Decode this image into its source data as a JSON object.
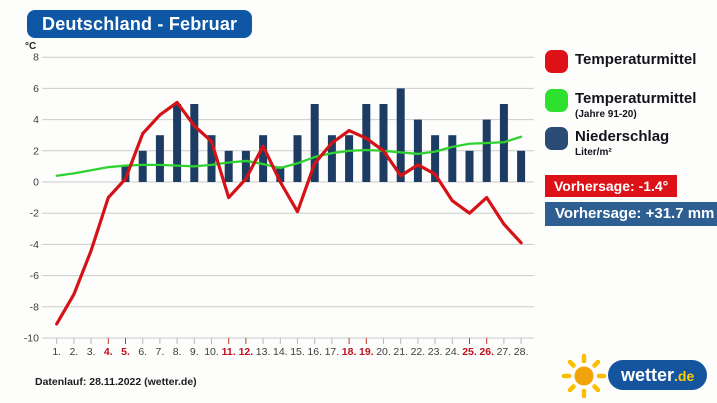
{
  "title": "Deutschland - Februar",
  "unit_label": "°C",
  "chart_data": {
    "type": "mixed",
    "title": "Deutschland - Februar",
    "ylabel": "°C",
    "ylim": [
      -10,
      8
    ],
    "yticks": [
      8,
      6,
      4,
      2,
      0,
      -2,
      -4,
      -6,
      -8,
      -10
    ],
    "categories": [
      "1.",
      "2.",
      "3.",
      "4.",
      "5.",
      "6.",
      "7.",
      "8.",
      "9.",
      "10.",
      "11.",
      "12.",
      "13.",
      "14.",
      "15.",
      "16.",
      "17.",
      "18.",
      "19.",
      "20.",
      "21.",
      "22.",
      "23.",
      "24.",
      "25.",
      "26.",
      "27.",
      "28."
    ],
    "weekend_days": [
      4,
      5,
      11,
      12,
      18,
      19,
      25,
      26
    ],
    "grid": true,
    "legend_position": "right",
    "series": [
      {
        "name": "Temperaturmittel",
        "type": "line",
        "color": "#d41217",
        "values": [
          -9.1,
          -7.2,
          -4.4,
          -1.0,
          0.2,
          3.1,
          4.3,
          5.1,
          3.6,
          2.6,
          -1.0,
          0.2,
          2.3,
          0.0,
          -1.9,
          1.2,
          2.5,
          3.3,
          2.8,
          2.0,
          0.4,
          1.1,
          0.5,
          -1.2,
          -2.0,
          -1.0,
          -2.7,
          -3.9
        ]
      },
      {
        "name": "Temperaturmittel (Jahre 91-20)",
        "type": "line",
        "color": "#2fd32f",
        "values": [
          0.4,
          0.55,
          0.75,
          0.95,
          1.05,
          1.1,
          1.1,
          1.05,
          1.0,
          1.1,
          1.25,
          1.35,
          1.15,
          0.9,
          1.2,
          1.6,
          1.85,
          2.0,
          2.05,
          2.0,
          1.9,
          1.8,
          1.95,
          2.25,
          2.45,
          2.5,
          2.55,
          2.9
        ]
      },
      {
        "name": "Niederschlag (Liter/m²)",
        "type": "bar",
        "color": "#1c3c63",
        "values": [
          null,
          null,
          null,
          null,
          1,
          2,
          3,
          5,
          5,
          3,
          2,
          2,
          3,
          1,
          3,
          5,
          3,
          3,
          5,
          5,
          6,
          4,
          3,
          3,
          2,
          4,
          5,
          2
        ]
      }
    ],
    "axis_colors": {
      "grid": "#cccccc",
      "tick_label": "#3d3d3d",
      "weekend_label": "#c01020"
    }
  },
  "legend": {
    "items": [
      {
        "label": "Temperaturmittel",
        "sublabel": "",
        "color": "#dd1116"
      },
      {
        "label": "Temperaturmittel",
        "sublabel": "(Jahre 91-20)",
        "color": "#2ee12e"
      },
      {
        "label": "Niederschlag",
        "sublabel": "Liter/m²",
        "color": "#2a4b74"
      }
    ]
  },
  "forecast": {
    "temperature": "Vorhersage: -1.4°",
    "precipitation": "Vorhersage: +31.7 mm",
    "temperature_bg": "#dc1218",
    "precipitation_bg": "#2d5f92"
  },
  "footer": {
    "datenlauf": "Datenlauf: 28.11.2022 (wetter.de)"
  },
  "logo": {
    "brand": "wetter",
    "tld": ".de"
  },
  "title_bg": "#0e57a5"
}
